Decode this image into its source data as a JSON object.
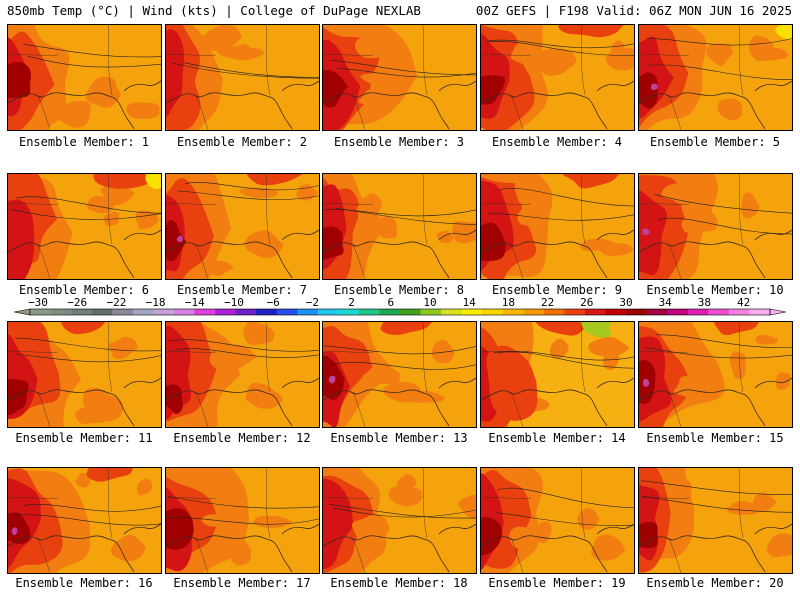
{
  "header": {
    "left": "850mb Temp (°C) | Wind (kts) | College of DuPage NEXLAB",
    "right": "00Z GEFS | F198 Valid: 06Z MON JUN 16 2025"
  },
  "panels": [
    {
      "label": "Ensemble Member: 1"
    },
    {
      "label": "Ensemble Member: 2"
    },
    {
      "label": "Ensemble Member: 3"
    },
    {
      "label": "Ensemble Member: 4"
    },
    {
      "label": "Ensemble Member: 5"
    },
    {
      "label": "Ensemble Member: 6"
    },
    {
      "label": "Ensemble Member: 7"
    },
    {
      "label": "Ensemble Member: 8"
    },
    {
      "label": "Ensemble Member: 9"
    },
    {
      "label": "Ensemble Member: 10"
    },
    {
      "label": "Ensemble Member: 11"
    },
    {
      "label": "Ensemble Member: 12"
    },
    {
      "label": "Ensemble Member: 13"
    },
    {
      "label": "Ensemble Member: 14"
    },
    {
      "label": "Ensemble Member: 15"
    },
    {
      "label": "Ensemble Member: 16"
    },
    {
      "label": "Ensemble Member: 17"
    },
    {
      "label": "Ensemble Member: 18"
    },
    {
      "label": "Ensemble Member: 19"
    },
    {
      "label": "Ensemble Member: 20"
    }
  ],
  "colorbar": {
    "ticks": [
      "−30",
      "−26",
      "−22",
      "−18",
      "−14",
      "−10",
      "−6",
      "−2",
      "2",
      "6",
      "10",
      "14",
      "18",
      "22",
      "26",
      "30",
      "34",
      "38",
      "42"
    ],
    "colors": [
      "#8c9a86",
      "#7f8f80",
      "#6f7f75",
      "#5f7068",
      "#8a8a9a",
      "#a5a5c0",
      "#c2a0d8",
      "#d980e8",
      "#e040e0",
      "#b020d8",
      "#7020c8",
      "#2020c0",
      "#2050e8",
      "#2090f0",
      "#20c8f0",
      "#20d8d0",
      "#20c890",
      "#20a850",
      "#40a020",
      "#90c820",
      "#d8e020",
      "#f8f000",
      "#f8d800",
      "#f8b800",
      "#f89800",
      "#f07000",
      "#e84010",
      "#d81818",
      "#c00000",
      "#980000",
      "#a00040",
      "#c00080",
      "#e020b0",
      "#f050d0",
      "#f880e0",
      "#f8b0f0"
    ]
  },
  "colors": {
    "base_orange": "#f5a30c",
    "warm_orange": "#f27d10",
    "red_orange": "#e8400f",
    "red": "#d41414",
    "dark_red": "#a00000",
    "purple": "#c040a0",
    "yellow": "#f8e000",
    "green": "#a8c820"
  }
}
